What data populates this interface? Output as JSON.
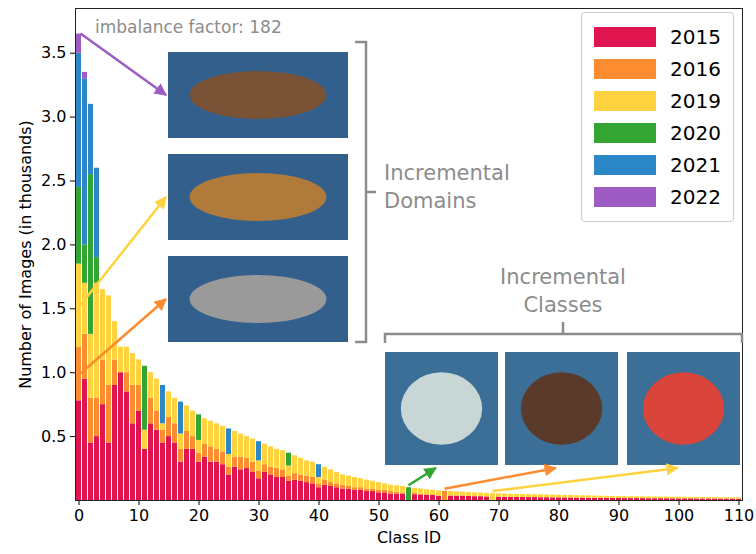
{
  "chart_data": {
    "type": "bar",
    "stacked": true,
    "xlabel": "Class ID",
    "ylabel": "Number of Images (in thousands)",
    "annotations": [
      "imbalance factor: 182",
      "Incremental Domains",
      "Incremental Classes"
    ],
    "legend": "upper right",
    "ylim": [
      0,
      3.85
    ],
    "yticks": [
      0.5,
      {
        "value": 1,
        "label": "1.0"
      },
      1.5,
      {
        "value": 2,
        "label": "2.0"
      },
      2.5,
      {
        "value": 3,
        "label": "3.0"
      },
      3.5
    ],
    "xticks": [
      0,
      10,
      20,
      30,
      40,
      50,
      60,
      70,
      80,
      90,
      100,
      110
    ],
    "categories": [
      0,
      1,
      2,
      3,
      4,
      5,
      6,
      7,
      8,
      9,
      10,
      11,
      12,
      13,
      14,
      15,
      16,
      17,
      18,
      19,
      20,
      21,
      22,
      23,
      24,
      25,
      26,
      27,
      28,
      29,
      30,
      31,
      32,
      33,
      34,
      35,
      36,
      37,
      38,
      39,
      40,
      41,
      42,
      43,
      44,
      45,
      46,
      47,
      48,
      49,
      50,
      51,
      52,
      53,
      54,
      55,
      56,
      57,
      58,
      59,
      60,
      61,
      62,
      63,
      64,
      65,
      66,
      67,
      68,
      69,
      70,
      71,
      72,
      73,
      74,
      75,
      76,
      77,
      78,
      79,
      80,
      81,
      82,
      83,
      84,
      85,
      86,
      87,
      88,
      89,
      90,
      91,
      92,
      93,
      94,
      95,
      96,
      97,
      98,
      99,
      100,
      101,
      102,
      103,
      104,
      105,
      106,
      107,
      108,
      109,
      110
    ],
    "series": [
      {
        "name": "2015",
        "color": "#e0144f",
        "values": [
          0.78,
          0.95,
          0.45,
          0.5,
          0.75,
          0.45,
          0.9,
          1.0,
          0.85,
          0.6,
          0.7,
          0.4,
          0.6,
          0.55,
          0.45,
          0.5,
          0.45,
          0.3,
          0.4,
          0.4,
          0.3,
          0.34,
          0.3,
          0.3,
          0.28,
          0.2,
          0.26,
          0.24,
          0.25,
          0.22,
          0.17,
          0.22,
          0.2,
          0.18,
          0.18,
          0.15,
          0.16,
          0.15,
          0.14,
          0.13,
          0.1,
          0.12,
          0.11,
          0.1,
          0.09,
          0.09,
          0.08,
          0.08,
          0.07,
          0.07,
          0.06,
          0.06,
          0.05,
          0.05,
          0.05,
          0,
          0.045,
          0.04,
          0.04,
          0.04,
          0.035,
          0,
          0.035,
          0.034,
          0.035,
          0.032,
          0.03,
          0.03,
          0.028,
          0,
          0.027,
          0.025,
          0.025,
          0.024,
          0.024,
          0.023,
          0.023,
          0.022,
          0.022,
          0.021,
          0.021,
          0.02,
          0.02,
          0.019,
          0.019,
          0.018,
          0.018,
          0.017,
          0.017,
          0.016,
          0.016,
          0.015,
          0.015,
          0.015,
          0.015,
          0.014,
          0.014,
          0.014,
          0.014,
          0.013,
          0.013,
          0.013,
          0.013,
          0.012,
          0.012,
          0.012,
          0.012,
          0.011,
          0.011,
          0.011,
          0.01
        ]
      },
      {
        "name": "2016",
        "color": "#fb8c30",
        "values": [
          0.42,
          0.35,
          0.35,
          0.3,
          0.35,
          0.45,
          0.2,
          0,
          0.15,
          0.3,
          0.2,
          0,
          0.2,
          0.15,
          0.1,
          0.15,
          0.15,
          0.1,
          0.14,
          0.1,
          0.07,
          0.1,
          0.12,
          0.1,
          0.1,
          0.06,
          0.08,
          0.1,
          0.08,
          0.08,
          0.06,
          0.06,
          0.06,
          0.07,
          0.06,
          0.04,
          0.05,
          0.05,
          0.05,
          0.05,
          0.03,
          0.04,
          0.03,
          0.03,
          0.03,
          0.02,
          0.02,
          0.02,
          0.02,
          0.02,
          0.02,
          0.02,
          0.02,
          0.015,
          0.01,
          0,
          0.01,
          0.01,
          0.005,
          0,
          0,
          0.072,
          0,
          0,
          0,
          0,
          0,
          0,
          0,
          0,
          0,
          0,
          0,
          0,
          0,
          0,
          0,
          0,
          0,
          0,
          0,
          0,
          0,
          0,
          0,
          0,
          0,
          0,
          0,
          0,
          0,
          0,
          0,
          0,
          0,
          0,
          0,
          0,
          0,
          0,
          0,
          0,
          0,
          0,
          0,
          0,
          0,
          0,
          0,
          0,
          0
        ]
      },
      {
        "name": "2019",
        "color": "#ffd23f",
        "values": [
          0.65,
          0.4,
          0.5,
          0.9,
          0.55,
          0.7,
          0.3,
          0.2,
          0.2,
          0.25,
          0.2,
          0.15,
          0.2,
          0.25,
          0.05,
          0.2,
          0.2,
          0.12,
          0.2,
          0.2,
          0.1,
          0.2,
          0.2,
          0.2,
          0.2,
          0.1,
          0.2,
          0.18,
          0.17,
          0.18,
          0.08,
          0.16,
          0.16,
          0.15,
          0.15,
          0.08,
          0.14,
          0.13,
          0.12,
          0.12,
          0.05,
          0.1,
          0.1,
          0.09,
          0.08,
          0.08,
          0.08,
          0.07,
          0.07,
          0.06,
          0.06,
          0.05,
          0.05,
          0.05,
          0.05,
          0,
          0.04,
          0.04,
          0.04,
          0.04,
          0.04,
          0,
          0.035,
          0.034,
          0.03,
          0.03,
          0.03,
          0.028,
          0.028,
          0.054,
          0.025,
          0.025,
          0.024,
          0.024,
          0.023,
          0.023,
          0.022,
          0.022,
          0.021,
          0.021,
          0.02,
          0.02,
          0.019,
          0.019,
          0.018,
          0.018,
          0.017,
          0.017,
          0.016,
          0.016,
          0.015,
          0.015,
          0.015,
          0.014,
          0.014,
          0.014,
          0.014,
          0.013,
          0.013,
          0.013,
          0.013,
          0.012,
          0.012,
          0.012,
          0.012,
          0.011,
          0.011,
          0.011,
          0.011,
          0.01,
          0.01
        ]
      },
      {
        "name": "2020",
        "color": "#33a532",
        "values": [
          0.6,
          0.3,
          1.25,
          0.2,
          0,
          0,
          0,
          0,
          0,
          0,
          0,
          0.5,
          0,
          0,
          0,
          0,
          0,
          0,
          0,
          0,
          0.2,
          0,
          0,
          0,
          0,
          0,
          0,
          0,
          0,
          0,
          0,
          0,
          0,
          0,
          0,
          0.1,
          0,
          0,
          0,
          0,
          0,
          0,
          0,
          0,
          0,
          0,
          0,
          0,
          0,
          0,
          0,
          0,
          0,
          0,
          0,
          0.1,
          0,
          0,
          0,
          0,
          0,
          0,
          0,
          0,
          0,
          0,
          0,
          0,
          0,
          0,
          0,
          0,
          0,
          0,
          0,
          0,
          0,
          0,
          0,
          0,
          0,
          0,
          0,
          0,
          0,
          0,
          0,
          0,
          0,
          0,
          0,
          0,
          0,
          0,
          0,
          0,
          0,
          0,
          0,
          0,
          0,
          0,
          0,
          0,
          0,
          0,
          0,
          0,
          0,
          0,
          0
        ]
      },
      {
        "name": "2021",
        "color": "#2b87c8",
        "values": [
          1.05,
          1.3,
          0.55,
          0.7,
          0,
          0,
          0,
          0,
          0,
          0,
          0,
          0,
          0,
          0,
          0.3,
          0,
          0,
          0.25,
          0,
          0,
          0,
          0,
          0,
          0,
          0,
          0.2,
          0,
          0,
          0,
          0,
          0.15,
          0,
          0,
          0,
          0,
          0,
          0,
          0,
          0,
          0,
          0.1,
          0,
          0,
          0,
          0,
          0,
          0,
          0,
          0,
          0,
          0,
          0,
          0,
          0,
          0,
          0,
          0,
          0,
          0,
          0,
          0,
          0,
          0,
          0,
          0,
          0,
          0,
          0,
          0,
          0,
          0,
          0,
          0,
          0,
          0,
          0,
          0,
          0,
          0,
          0,
          0,
          0,
          0,
          0,
          0,
          0,
          0,
          0,
          0,
          0,
          0,
          0,
          0,
          0,
          0,
          0,
          0,
          0,
          0,
          0,
          0,
          0,
          0,
          0,
          0,
          0,
          0,
          0,
          0,
          0,
          0
        ]
      },
      {
        "name": "2022",
        "color": "#9c5cc4",
        "values": [
          0.15,
          0.05,
          0,
          0,
          0,
          0,
          0,
          0,
          0,
          0,
          0,
          0,
          0,
          0,
          0,
          0,
          0,
          0,
          0,
          0,
          0,
          0,
          0,
          0,
          0,
          0,
          0,
          0,
          0,
          0,
          0,
          0,
          0,
          0,
          0,
          0,
          0,
          0,
          0,
          0,
          0,
          0,
          0,
          0,
          0,
          0,
          0,
          0,
          0,
          0,
          0,
          0,
          0,
          0,
          0,
          0,
          0,
          0,
          0,
          0,
          0,
          0,
          0,
          0,
          0,
          0,
          0,
          0,
          0,
          0,
          0,
          0,
          0,
          0,
          0,
          0,
          0,
          0,
          0,
          0,
          0,
          0,
          0,
          0,
          0,
          0,
          0,
          0,
          0,
          0,
          0,
          0,
          0,
          0,
          0,
          0,
          0,
          0,
          0,
          0,
          0,
          0,
          0,
          0,
          0,
          0,
          0,
          0,
          0,
          0,
          0
        ]
      }
    ]
  }
}
